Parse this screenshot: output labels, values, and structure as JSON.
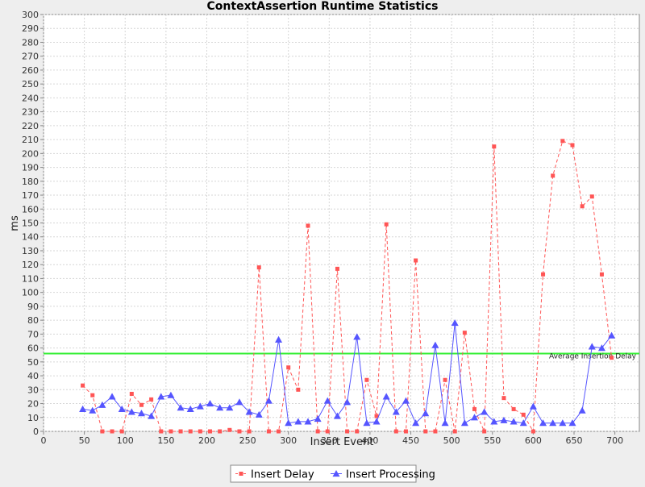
{
  "chart_data": {
    "type": "line",
    "title": "ContextAssertion Runtime Statistics",
    "xlabel": "Insert Event",
    "ylabel": "ms",
    "xlim": [
      0,
      730
    ],
    "ylim": [
      0,
      300
    ],
    "x_ticks": [
      "0",
      "50",
      "100",
      "150",
      "200",
      "250",
      "300",
      "350",
      "400",
      "450",
      "500",
      "550",
      "600",
      "650",
      "700"
    ],
    "y_ticks": [
      "0",
      "10",
      "20",
      "30",
      "40",
      "50",
      "60",
      "70",
      "80",
      "90",
      "100",
      "110",
      "120",
      "130",
      "140",
      "150",
      "160",
      "170",
      "180",
      "190",
      "200",
      "210",
      "220",
      "230",
      "240",
      "250",
      "260",
      "270",
      "280",
      "290",
      "300"
    ],
    "grid": true,
    "legend_position": "bottom",
    "series": [
      {
        "name": "Insert Delay",
        "color": "#ff5555",
        "style": "dashed",
        "marker": "square",
        "points": [
          [
            48,
            33
          ],
          [
            60,
            26
          ],
          [
            72,
            0
          ],
          [
            84,
            0
          ],
          [
            96,
            0
          ],
          [
            108,
            27
          ],
          [
            120,
            19
          ],
          [
            132,
            23
          ],
          [
            144,
            0
          ],
          [
            156,
            0
          ],
          [
            168,
            0
          ],
          [
            180,
            0
          ],
          [
            192,
            0
          ],
          [
            204,
            0
          ],
          [
            216,
            0
          ],
          [
            228,
            1
          ],
          [
            240,
            0
          ],
          [
            252,
            0
          ],
          [
            264,
            118
          ],
          [
            276,
            0
          ],
          [
            288,
            0
          ],
          [
            300,
            46
          ],
          [
            312,
            30
          ],
          [
            324,
            148
          ],
          [
            336,
            0
          ],
          [
            348,
            0
          ],
          [
            360,
            117
          ],
          [
            372,
            0
          ],
          [
            384,
            0
          ],
          [
            396,
            37
          ],
          [
            408,
            11
          ],
          [
            420,
            149
          ],
          [
            432,
            0
          ],
          [
            444,
            0
          ],
          [
            456,
            123
          ],
          [
            468,
            0
          ],
          [
            480,
            0
          ],
          [
            492,
            37
          ],
          [
            504,
            0
          ],
          [
            516,
            71
          ],
          [
            528,
            16
          ],
          [
            540,
            0
          ],
          [
            552,
            205
          ],
          [
            564,
            24
          ],
          [
            576,
            16
          ],
          [
            588,
            12
          ],
          [
            600,
            0
          ],
          [
            612,
            113
          ],
          [
            624,
            184
          ],
          [
            636,
            209
          ],
          [
            648,
            206
          ],
          [
            660,
            162
          ],
          [
            672,
            169
          ],
          [
            684,
            113
          ],
          [
            696,
            53
          ]
        ]
      },
      {
        "name": "Insert Processing",
        "color": "#5555ff",
        "style": "solid",
        "marker": "triangle",
        "points": [
          [
            48,
            16
          ],
          [
            60,
            15
          ],
          [
            72,
            19
          ],
          [
            84,
            25
          ],
          [
            96,
            16
          ],
          [
            108,
            14
          ],
          [
            120,
            13
          ],
          [
            132,
            11
          ],
          [
            144,
            25
          ],
          [
            156,
            26
          ],
          [
            168,
            17
          ],
          [
            180,
            16
          ],
          [
            192,
            18
          ],
          [
            204,
            20
          ],
          [
            216,
            17
          ],
          [
            228,
            17
          ],
          [
            240,
            21
          ],
          [
            252,
            14
          ],
          [
            264,
            12
          ],
          [
            276,
            22
          ],
          [
            288,
            66
          ],
          [
            300,
            6
          ],
          [
            312,
            7
          ],
          [
            324,
            7
          ],
          [
            336,
            9
          ],
          [
            348,
            22
          ],
          [
            360,
            11
          ],
          [
            372,
            21
          ],
          [
            384,
            68
          ],
          [
            396,
            6
          ],
          [
            408,
            7
          ],
          [
            420,
            25
          ],
          [
            432,
            14
          ],
          [
            444,
            22
          ],
          [
            456,
            6
          ],
          [
            468,
            13
          ],
          [
            480,
            62
          ],
          [
            492,
            6
          ],
          [
            504,
            78
          ],
          [
            516,
            6
          ],
          [
            528,
            10
          ],
          [
            540,
            14
          ],
          [
            552,
            7
          ],
          [
            564,
            8
          ],
          [
            576,
            7
          ],
          [
            588,
            6
          ],
          [
            600,
            18
          ],
          [
            612,
            6
          ],
          [
            624,
            6
          ],
          [
            636,
            6
          ],
          [
            648,
            6
          ],
          [
            660,
            15
          ],
          [
            672,
            61
          ],
          [
            684,
            60
          ],
          [
            696,
            69
          ]
        ]
      }
    ],
    "reference_line": {
      "value": 56,
      "label": "Average Insertion Delay",
      "color": "#33ee33"
    }
  }
}
